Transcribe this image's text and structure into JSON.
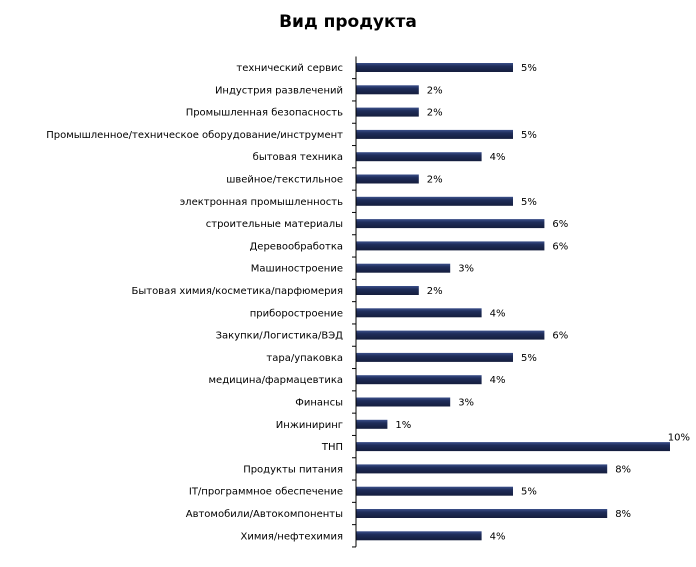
{
  "chart_data": {
    "type": "bar",
    "orientation": "horizontal",
    "title": "Вид продукта",
    "categories": [
      "технический сервис",
      "Индустрия развлечений",
      "Промышленная безопасность",
      "Промышленное/техническое оборудование/инструмент",
      "бытовая техника",
      "швейное/текстильное",
      "электронная промышленность",
      "строительные материалы",
      "Деревообработка",
      "Машиностроение",
      "Бытовая химия/косметика/парфюмерия",
      "приборостроение",
      "Закупки/Логистика/ВЭД",
      "тара/упаковка",
      "медицина/фармацевтика",
      "Финансы",
      "Инжиниринг",
      "ТНП",
      "Продукты питания",
      "IT/программное обеспечение",
      "Автомобили/Автокомпоненты",
      "Химия/нефтехимия"
    ],
    "values": [
      5,
      2,
      2,
      5,
      4,
      2,
      5,
      6,
      6,
      3,
      2,
      4,
      6,
      5,
      4,
      3,
      1,
      10,
      8,
      5,
      8,
      4
    ],
    "value_labels": [
      "5%",
      "2%",
      "2%",
      "5%",
      "4%",
      "2%",
      "5%",
      "6%",
      "6%",
      "3%",
      "2%",
      "4%",
      "6%",
      "5%",
      "4%",
      "3%",
      "1%",
      "10%",
      "8%",
      "5%",
      "8%",
      "4%"
    ],
    "xlim": [
      0,
      10
    ],
    "grid": false,
    "legend": "none",
    "colors": {
      "bar": "#1f2d5a",
      "bar_highlight": "#3b4f8a",
      "axis": "#000000"
    }
  }
}
